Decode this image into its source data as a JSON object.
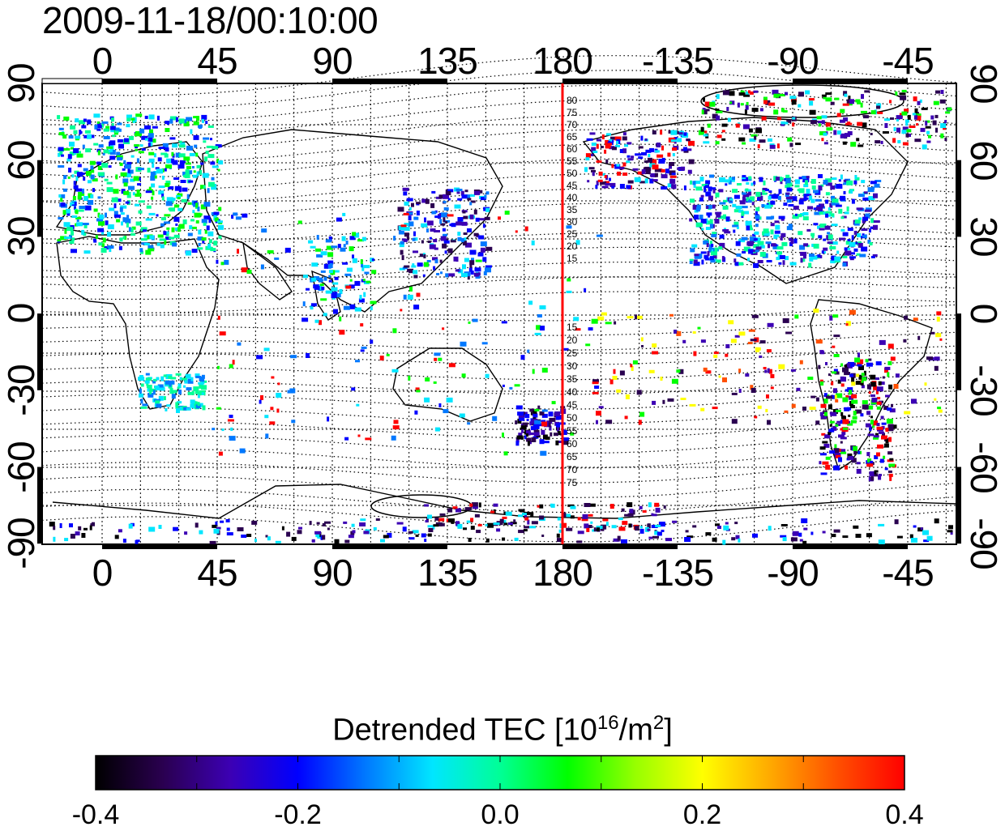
{
  "title": "2009-11-18/00:10:00",
  "lon_ticks": [
    "0",
    "45",
    "90",
    "135",
    "180",
    "-135",
    "-90",
    "-45"
  ],
  "lat_ticks": [
    "90",
    "60",
    "30",
    "0",
    "-30",
    "-60",
    "-90"
  ],
  "meridian_label_north": [
    "80",
    "75",
    "70",
    "65",
    "60",
    "55",
    "50",
    "45",
    "40",
    "35",
    "30",
    "25",
    "20",
    "15"
  ],
  "meridian_label_south": [
    "15",
    "20",
    "25",
    "30",
    "35",
    "40",
    "45",
    "50",
    "55",
    "60",
    "65",
    "70",
    "75"
  ],
  "marker_longitude": 180,
  "colorbar": {
    "title_main": "Detrended TEC  [10",
    "title_exp": "16",
    "title_unit": "/m",
    "title_exp2": "2",
    "title_end": "]",
    "min": -0.4,
    "max": 0.4,
    "tick_labels": [
      "-0.4",
      "-0.2",
      "0.0",
      "0.2",
      "0.4"
    ],
    "colors": [
      "#000000",
      "#2a0050",
      "#3c00b4",
      "#0000ff",
      "#0078ff",
      "#00e6ff",
      "#00ff96",
      "#00ff00",
      "#96ff00",
      "#ffff00",
      "#ffaa00",
      "#ff5000",
      "#ff0000"
    ]
  },
  "colors": {
    "marker_line": "#ff0000",
    "coast": "#000000"
  }
}
